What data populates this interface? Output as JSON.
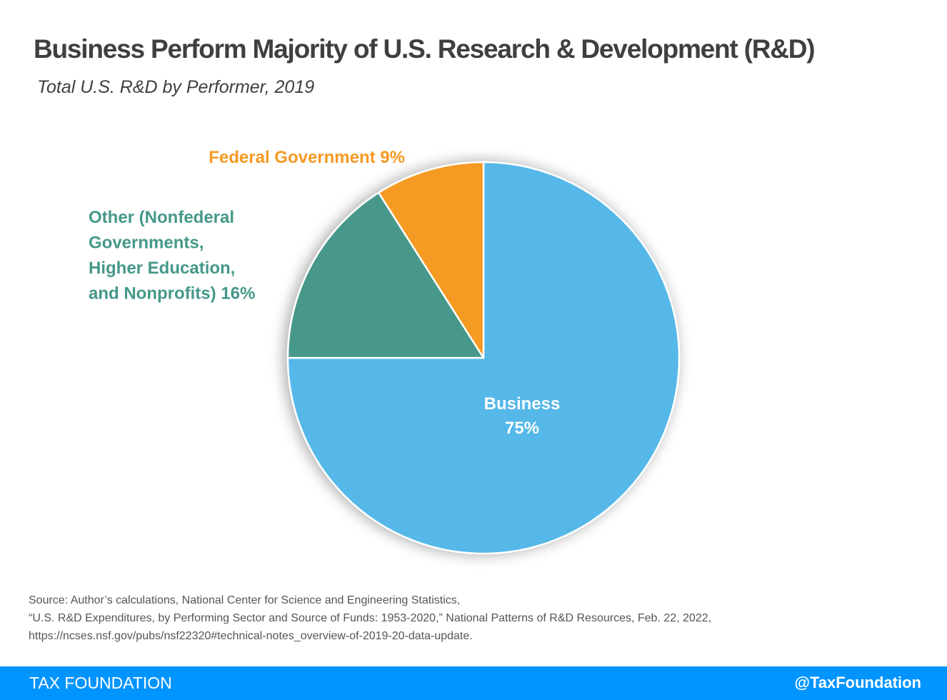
{
  "header": {
    "title": "Business Perform Majority of U.S. Research & Development (R&D)",
    "subtitle": "Total U.S. R&D by Performer, 2019"
  },
  "chart_data": {
    "type": "pie",
    "title": "Business Perform Majority of U.S. Research & Development (R&D)",
    "subtitle": "Total U.S. R&D by Performer, 2019",
    "start_angle": "12 o'clock",
    "direction": "clockwise",
    "slices": [
      {
        "name": "Business",
        "value": 75,
        "color": "#54b8e8",
        "label_lines": [
          "Business",
          "75%"
        ],
        "label_color": "#ffffff",
        "label_position": "inside"
      },
      {
        "name": "Other (Nonfederal Governments, Higher Education, and Nonprofits)",
        "value": 16,
        "color": "#46988a",
        "label_lines": [
          "Other (Nonfederal",
          "Governments,",
          "Higher Education,",
          "and Nonprofits) 16%"
        ],
        "label_color": "#46988a",
        "label_position": "outside-left"
      },
      {
        "name": "Federal Government",
        "value": 9,
        "color": "#f59a23",
        "label_lines": [
          "Federal Government 9%"
        ],
        "label_color": "#f59a23",
        "label_position": "outside-top-left"
      }
    ]
  },
  "source": {
    "lines": [
      "Source: Author’s calculations, National Center for Science and Engineering Statistics,",
      "“U.S. R&D Expenditures, by Performing Sector and Source of Funds: 1953-2020,” National Patterns of R&D Resources, Feb. 22, 2022,",
      "https://ncses.nsf.gov/pubs/nsf22320#technical-notes_overview-of-2019-20-data-update."
    ]
  },
  "footer": {
    "brand": "TAX FOUNDATION",
    "handle": "@TaxFoundation",
    "color": "#0094ff"
  }
}
